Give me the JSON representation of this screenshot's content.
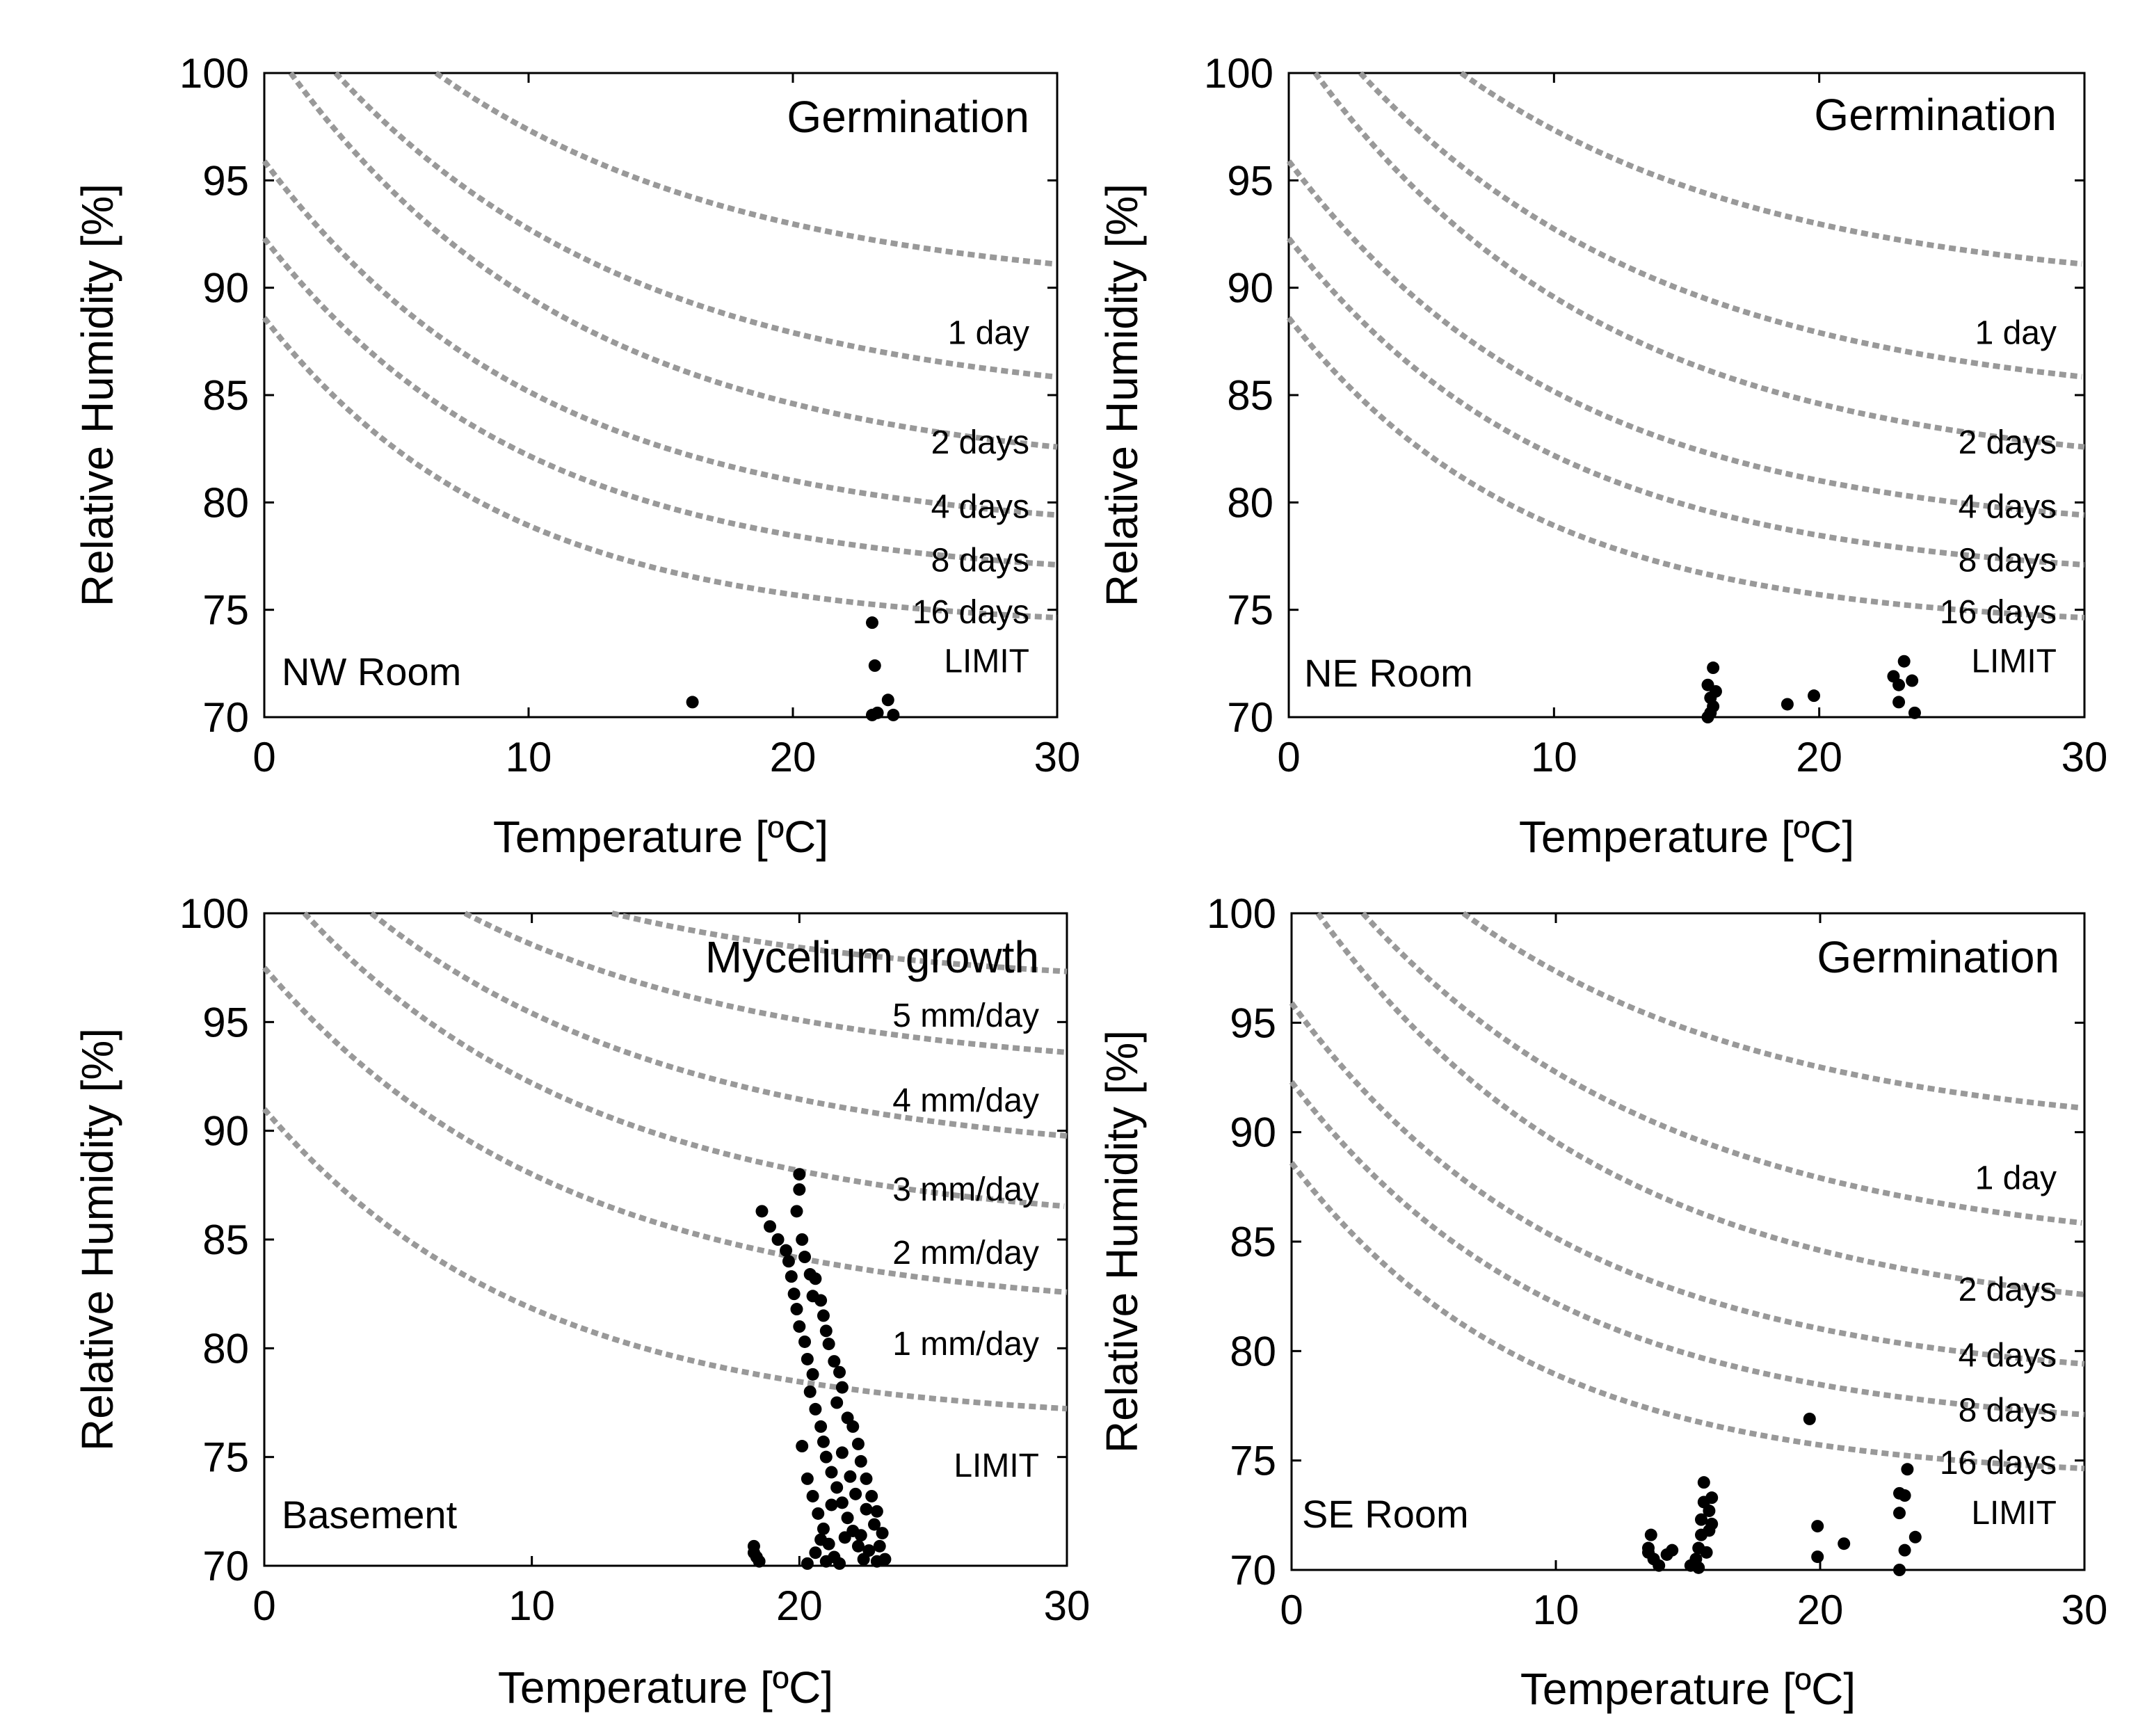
{
  "chart_data": [
    {
      "type": "scatter",
      "title": "Germination",
      "room": "NW Room",
      "xlabel": "Temperature [ºC]",
      "ylabel": "Relative Humidity [%]",
      "xlim": [
        0,
        30
      ],
      "ylim": [
        70,
        100
      ],
      "xticks": [
        "0",
        "10",
        "20",
        "30"
      ],
      "yticks": [
        "70",
        "75",
        "80",
        "85",
        "90",
        "95",
        "100"
      ],
      "isopleths": [
        {
          "label": "1 day",
          "asymptote": 89.7,
          "decay": 0.085,
          "start_x": 6.5,
          "label_y": 87.9
        },
        {
          "label": "2 days",
          "asymptote": 84.3,
          "decay": 0.085,
          "start_x": 2.7,
          "label_y": 82.8
        },
        {
          "label": "4 days",
          "asymptote": 81.2,
          "decay": 0.09,
          "start_x": 1.0,
          "label_y": 79.8
        },
        {
          "label": "8 days",
          "asymptote": 78.4,
          "decay": 0.095,
          "start_x": 0.0,
          "label_y": 77.3
        },
        {
          "label": "16 days",
          "asymptote": 76.3,
          "decay": 0.1,
          "start_x": 0.0,
          "label_y": 74.9
        },
        {
          "label": "LIMIT",
          "asymptote": 74.1,
          "decay": 0.11,
          "start_x": 0.0,
          "label_y": 72.6
        }
      ],
      "points": [
        [
          16.2,
          70.7
        ],
        [
          23.0,
          74.4
        ],
        [
          23.1,
          72.4
        ],
        [
          23.0,
          70.1
        ],
        [
          23.2,
          70.2
        ],
        [
          23.6,
          70.8
        ],
        [
          23.8,
          70.1
        ]
      ]
    },
    {
      "type": "scatter",
      "title": "Germination",
      "room": "NE Room",
      "xlabel": "Temperature [ºC]",
      "ylabel": "Relative Humidity [%]",
      "xlim": [
        0,
        30
      ],
      "ylim": [
        70,
        100
      ],
      "xticks": [
        "0",
        "10",
        "20",
        "30"
      ],
      "yticks": [
        "70",
        "75",
        "80",
        "85",
        "90",
        "95",
        "100"
      ],
      "isopleths": [
        {
          "label": "1 day",
          "asymptote": 89.7,
          "decay": 0.085,
          "start_x": 6.5,
          "label_y": 87.9
        },
        {
          "label": "2 days",
          "asymptote": 84.3,
          "decay": 0.085,
          "start_x": 2.7,
          "label_y": 82.8
        },
        {
          "label": "4 days",
          "asymptote": 81.2,
          "decay": 0.09,
          "start_x": 1.0,
          "label_y": 79.8
        },
        {
          "label": "8 days",
          "asymptote": 78.4,
          "decay": 0.095,
          "start_x": 0.0,
          "label_y": 77.3
        },
        {
          "label": "16 days",
          "asymptote": 76.3,
          "decay": 0.1,
          "start_x": 0.0,
          "label_y": 74.9
        },
        {
          "label": "LIMIT",
          "asymptote": 74.1,
          "decay": 0.11,
          "start_x": 0.0,
          "label_y": 72.6
        }
      ],
      "points": [
        [
          15.8,
          71.5
        ],
        [
          16.0,
          72.3
        ],
        [
          15.9,
          70.9
        ],
        [
          16.1,
          71.2
        ],
        [
          16.0,
          70.5
        ],
        [
          15.9,
          70.2
        ],
        [
          15.8,
          70.0
        ],
        [
          18.8,
          70.6
        ],
        [
          19.8,
          71.0
        ],
        [
          22.8,
          71.9
        ],
        [
          23.2,
          72.6
        ],
        [
          23.0,
          71.5
        ],
        [
          23.5,
          71.7
        ],
        [
          23.0,
          70.7
        ],
        [
          23.6,
          70.2
        ]
      ]
    },
    {
      "type": "scatter",
      "title": "Mycelium growth",
      "room": "Basement",
      "xlabel": "Temperature [ºC]",
      "ylabel": "Relative Humidity [%]",
      "xlim": [
        0,
        30
      ],
      "ylim": [
        70,
        100
      ],
      "xticks": [
        "0",
        "10",
        "20",
        "30"
      ],
      "yticks": [
        "70",
        "75",
        "80",
        "85",
        "90",
        "95",
        "100"
      ],
      "isopleths": [
        {
          "label": "5 mm/day",
          "asymptote": 96.5,
          "decay": 0.085,
          "start_x": 13.0,
          "label_y": 95.3
        },
        {
          "label": "4 mm/day",
          "asymptote": 92.5,
          "decay": 0.085,
          "start_x": 7.5,
          "label_y": 91.4
        },
        {
          "label": "3 mm/day",
          "asymptote": 88.5,
          "decay": 0.085,
          "start_x": 4.0,
          "label_y": 87.3
        },
        {
          "label": "2 mm/day",
          "asymptote": 85.4,
          "decay": 0.09,
          "start_x": 1.5,
          "label_y": 84.4
        },
        {
          "label": "1 mm/day",
          "asymptote": 81.5,
          "decay": 0.09,
          "start_x": 0.0,
          "label_y": 80.2
        },
        {
          "label": "LIMIT",
          "asymptote": 76.5,
          "decay": 0.1,
          "start_x": 0.0,
          "label_y": 74.6
        }
      ],
      "points": [
        [
          20.0,
          88.0
        ],
        [
          20.0,
          87.3
        ],
        [
          19.9,
          86.3
        ],
        [
          18.6,
          86.3
        ],
        [
          18.9,
          85.6
        ],
        [
          19.2,
          85.0
        ],
        [
          19.5,
          84.5
        ],
        [
          20.1,
          85.0
        ],
        [
          19.6,
          84.0
        ],
        [
          20.2,
          84.2
        ],
        [
          19.7,
          83.3
        ],
        [
          20.4,
          83.4
        ],
        [
          19.8,
          82.5
        ],
        [
          20.6,
          83.2
        ],
        [
          19.9,
          81.8
        ],
        [
          20.5,
          82.4
        ],
        [
          20.0,
          81.0
        ],
        [
          20.8,
          82.2
        ],
        [
          20.2,
          80.3
        ],
        [
          20.9,
          81.5
        ],
        [
          20.3,
          79.5
        ],
        [
          21.0,
          80.8
        ],
        [
          20.5,
          78.8
        ],
        [
          21.1,
          80.2
        ],
        [
          20.4,
          78.0
        ],
        [
          21.3,
          79.4
        ],
        [
          20.6,
          77.2
        ],
        [
          21.5,
          78.9
        ],
        [
          20.8,
          76.4
        ],
        [
          21.6,
          78.2
        ],
        [
          20.9,
          75.7
        ],
        [
          21.4,
          77.5
        ],
        [
          20.1,
          75.5
        ],
        [
          21.0,
          75.0
        ],
        [
          21.8,
          76.8
        ],
        [
          21.2,
          74.3
        ],
        [
          22.0,
          76.4
        ],
        [
          20.3,
          74.0
        ],
        [
          21.4,
          73.6
        ],
        [
          22.2,
          75.6
        ],
        [
          20.5,
          73.2
        ],
        [
          21.6,
          72.9
        ],
        [
          22.3,
          74.8
        ],
        [
          20.7,
          72.4
        ],
        [
          21.8,
          72.2
        ],
        [
          22.5,
          74.0
        ],
        [
          20.9,
          71.7
        ],
        [
          22.0,
          71.6
        ],
        [
          22.7,
          73.2
        ],
        [
          21.1,
          71.0
        ],
        [
          22.2,
          70.9
        ],
        [
          22.9,
          72.5
        ],
        [
          21.3,
          70.4
        ],
        [
          22.4,
          70.3
        ],
        [
          23.1,
          71.5
        ],
        [
          21.5,
          70.1
        ],
        [
          22.6,
          70.7
        ],
        [
          23.2,
          70.3
        ],
        [
          21.7,
          71.3
        ],
        [
          22.8,
          71.9
        ],
        [
          21.2,
          72.8
        ],
        [
          21.9,
          74.1
        ],
        [
          22.1,
          73.3
        ],
        [
          20.6,
          70.6
        ],
        [
          21.0,
          70.2
        ],
        [
          20.8,
          71.2
        ],
        [
          22.5,
          72.6
        ],
        [
          21.6,
          75.2
        ],
        [
          22.3,
          71.4
        ],
        [
          23.0,
          70.9
        ],
        [
          18.3,
          70.9
        ],
        [
          18.4,
          70.4
        ],
        [
          18.5,
          70.2
        ],
        [
          18.3,
          70.6
        ],
        [
          20.3,
          70.1
        ],
        [
          22.9,
          70.2
        ]
      ]
    },
    {
      "type": "scatter",
      "title": "Germination",
      "room": "SE Room",
      "xlabel": "Temperature [ºC]",
      "ylabel": "Relative Humidity [%]",
      "xlim": [
        0,
        30
      ],
      "ylim": [
        70,
        100
      ],
      "xticks": [
        "0",
        "10",
        "20",
        "30"
      ],
      "yticks": [
        "70",
        "75",
        "80",
        "85",
        "90",
        "95",
        "100"
      ],
      "isopleths": [
        {
          "label": "1 day",
          "asymptote": 89.7,
          "decay": 0.085,
          "start_x": 6.5,
          "label_y": 87.9
        },
        {
          "label": "2 days",
          "asymptote": 84.3,
          "decay": 0.085,
          "start_x": 2.7,
          "label_y": 82.8
        },
        {
          "label": "4 days",
          "asymptote": 81.2,
          "decay": 0.09,
          "start_x": 1.0,
          "label_y": 79.8
        },
        {
          "label": "8 days",
          "asymptote": 78.4,
          "decay": 0.095,
          "start_x": 0.0,
          "label_y": 77.3
        },
        {
          "label": "16 days",
          "asymptote": 76.3,
          "decay": 0.1,
          "start_x": 0.0,
          "label_y": 74.9
        },
        {
          "label": "LIMIT",
          "asymptote": 74.1,
          "decay": 0.11,
          "start_x": 0.0,
          "label_y": 72.6
        }
      ],
      "points": [
        [
          13.5,
          71.0
        ],
        [
          13.6,
          71.6
        ],
        [
          13.7,
          70.5
        ],
        [
          13.9,
          70.2
        ],
        [
          13.5,
          70.8
        ],
        [
          14.2,
          70.7
        ],
        [
          14.4,
          70.9
        ],
        [
          15.1,
          70.2
        ],
        [
          15.3,
          70.5
        ],
        [
          15.4,
          71.0
        ],
        [
          15.5,
          71.6
        ],
        [
          15.5,
          72.3
        ],
        [
          15.6,
          73.1
        ],
        [
          15.6,
          74.0
        ],
        [
          15.8,
          72.7
        ],
        [
          15.9,
          73.3
        ],
        [
          15.8,
          71.8
        ],
        [
          15.7,
          70.8
        ],
        [
          15.4,
          70.1
        ],
        [
          15.9,
          72.1
        ],
        [
          19.6,
          76.9
        ],
        [
          19.9,
          72.0
        ],
        [
          19.9,
          70.6
        ],
        [
          20.9,
          71.2
        ],
        [
          23.0,
          73.5
        ],
        [
          23.3,
          74.6
        ],
        [
          23.2,
          73.4
        ],
        [
          23.0,
          72.6
        ],
        [
          23.2,
          70.9
        ],
        [
          23.6,
          71.5
        ],
        [
          23.0,
          70.0
        ]
      ]
    }
  ]
}
